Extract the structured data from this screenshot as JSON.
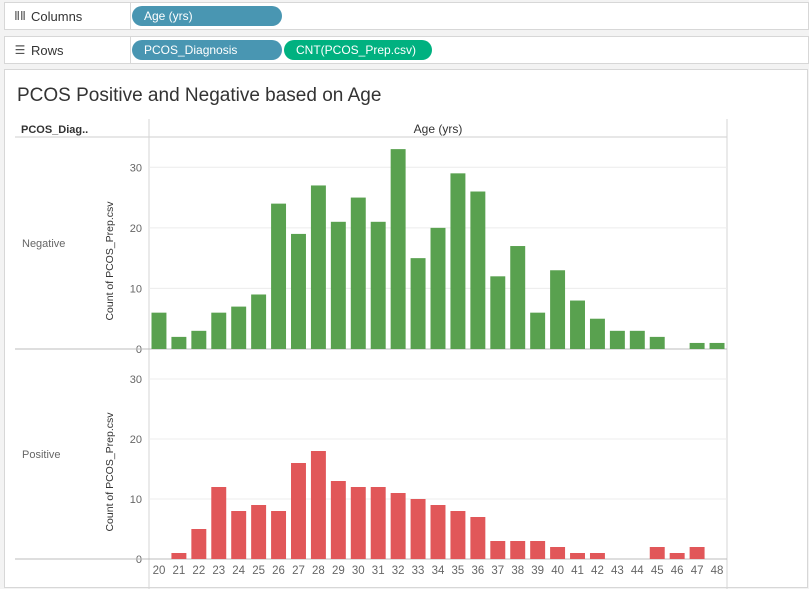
{
  "shelves": {
    "columns": {
      "label": "Columns",
      "icon": "columns-icon",
      "pills": [
        {
          "label": "Age (yrs)",
          "color": "#4996b2"
        }
      ]
    },
    "rows": {
      "label": "Rows",
      "icon": "rows-icon",
      "pills": [
        {
          "label": "PCOS_Diagnosis",
          "color": "#4996b2"
        },
        {
          "label": "CNT(PCOS_Prep.csv)",
          "color": "#00b180"
        }
      ]
    }
  },
  "chart_data": {
    "type": "bar",
    "title": "PCOS Positive and Negative based on Age",
    "row_header": "PCOS_Diag..",
    "column_header": "Age (yrs)",
    "ylabel": "Count of PCOS_Prep.csv",
    "ylim": [
      0,
      35
    ],
    "yticks": [
      0,
      10,
      20,
      30
    ],
    "grid": true,
    "categories": [
      "20",
      "21",
      "22",
      "23",
      "24",
      "25",
      "26",
      "27",
      "28",
      "29",
      "30",
      "31",
      "32",
      "33",
      "34",
      "35",
      "36",
      "37",
      "38",
      "39",
      "40",
      "41",
      "42",
      "43",
      "44",
      "45",
      "46",
      "47",
      "48"
    ],
    "series": [
      {
        "name": "Negative",
        "color": "#59a14f",
        "values": [
          6,
          2,
          3,
          6,
          7,
          9,
          24,
          19,
          27,
          21,
          25,
          21,
          33,
          15,
          20,
          29,
          26,
          12,
          17,
          6,
          13,
          8,
          5,
          3,
          3,
          2,
          0,
          1,
          1
        ]
      },
      {
        "name": "Positive",
        "color": "#e15759",
        "values": [
          0,
          1,
          5,
          12,
          8,
          9,
          8,
          16,
          18,
          13,
          12,
          12,
          11,
          10,
          9,
          8,
          7,
          3,
          3,
          3,
          2,
          1,
          1,
          0,
          0,
          2,
          1,
          2,
          0
        ]
      }
    ]
  }
}
